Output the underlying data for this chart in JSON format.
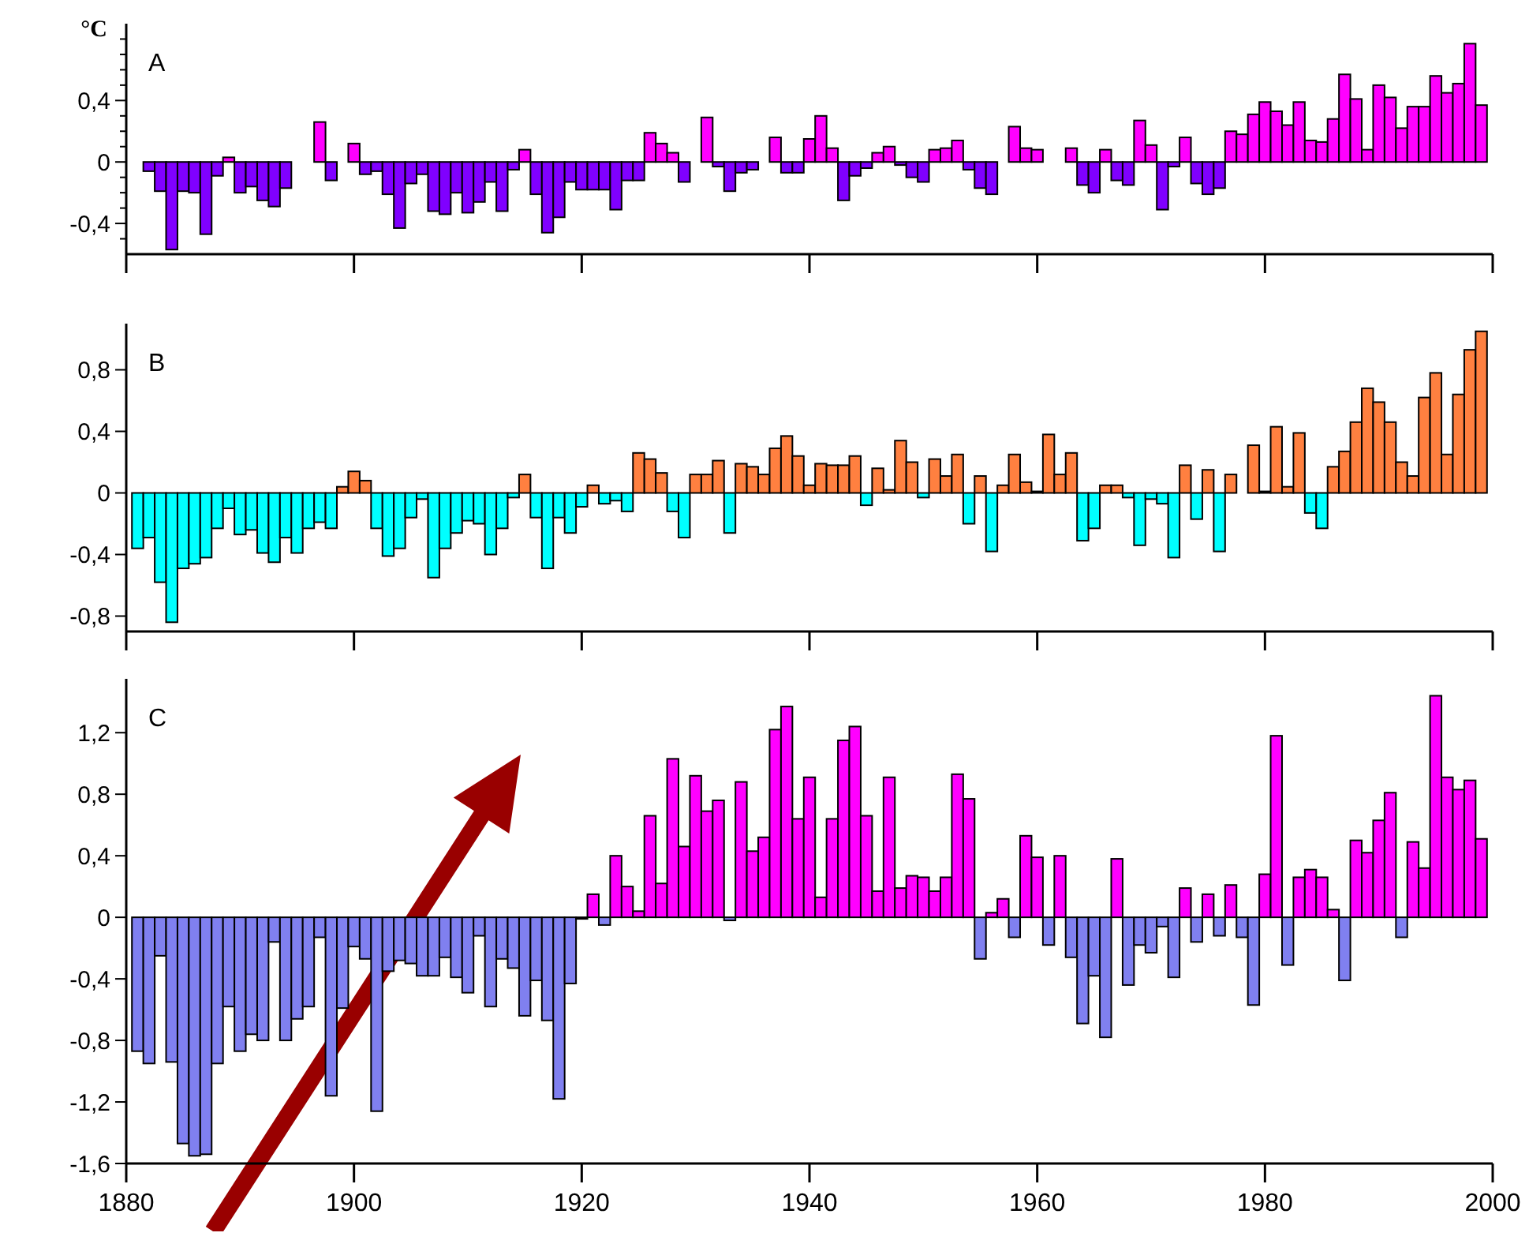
{
  "chart_data": [
    {
      "type": "bar",
      "title": "A",
      "ylabel": "°C",
      "xlim": [
        1880,
        2000
      ],
      "ylim": [
        -0.6,
        0.9
      ],
      "tick_labels": "y",
      "xticks": [
        {
          "value": 1880,
          "label": null
        },
        {
          "value": 1900,
          "label": null
        },
        {
          "value": 1920,
          "label": null
        },
        {
          "value": 1940,
          "label": null
        },
        {
          "value": 1960,
          "label": null
        },
        {
          "value": 1980,
          "label": null
        },
        {
          "value": 2000,
          "label": null
        }
      ],
      "yticks": [
        {
          "value": -0.5,
          "label": null
        },
        {
          "value": -0.4,
          "label": "-0,4"
        },
        {
          "value": -0.3,
          "label": null
        },
        {
          "value": -0.2,
          "label": null
        },
        {
          "value": -0.1,
          "label": null
        },
        {
          "value": 0,
          "label": "0"
        },
        {
          "value": 0.1,
          "label": null
        },
        {
          "value": 0.2,
          "label": null
        },
        {
          "value": 0.3,
          "label": null
        },
        {
          "value": 0.4,
          "label": "0,4"
        },
        {
          "value": 0.5,
          "label": null
        },
        {
          "value": 0.6,
          "label": null
        },
        {
          "value": 0.7,
          "label": null
        },
        {
          "value": 0.8,
          "label": null
        }
      ],
      "x": [
        1881,
        1882,
        1883,
        1884,
        1885,
        1886,
        1887,
        1888,
        1889,
        1890,
        1891,
        1892,
        1893,
        1894,
        1895,
        1896,
        1897,
        1898,
        1899,
        1900,
        1901,
        1902,
        1903,
        1904,
        1905,
        1906,
        1907,
        1908,
        1909,
        1910,
        1911,
        1912,
        1913,
        1914,
        1915,
        1916,
        1917,
        1918,
        1919,
        1920,
        1921,
        1922,
        1923,
        1924,
        1925,
        1926,
        1927,
        1928,
        1929,
        1930,
        1931,
        1932,
        1933,
        1934,
        1935,
        1936,
        1937,
        1938,
        1939,
        1940,
        1941,
        1942,
        1943,
        1944,
        1945,
        1946,
        1947,
        1948,
        1949,
        1950,
        1951,
        1952,
        1953,
        1954,
        1955,
        1956,
        1957,
        1958,
        1959,
        1960,
        1961,
        1962,
        1963,
        1964,
        1965,
        1966,
        1967,
        1968,
        1969,
        1970,
        1971,
        1972,
        1973,
        1974,
        1975,
        1976,
        1977,
        1978,
        1979,
        1980,
        1981,
        1982,
        1983,
        1984,
        1985,
        1986,
        1987,
        1988,
        1989,
        1990,
        1991,
        1992,
        1993,
        1994,
        1995,
        1996,
        1997,
        1998,
        1999
      ],
      "values": [
        0,
        -0.06,
        -0.19,
        -0.57,
        -0.19,
        -0.2,
        -0.47,
        -0.09,
        0.03,
        -0.2,
        -0.16,
        -0.25,
        -0.29,
        -0.17,
        0,
        0,
        0.26,
        -0.12,
        0,
        0.12,
        -0.08,
        -0.06,
        -0.21,
        -0.43,
        -0.14,
        -0.08,
        -0.32,
        -0.34,
        -0.2,
        -0.33,
        -0.26,
        -0.13,
        -0.32,
        -0.05,
        0.08,
        -0.21,
        -0.46,
        -0.36,
        -0.13,
        -0.18,
        -0.18,
        -0.18,
        -0.31,
        -0.12,
        -0.12,
        0.19,
        0.12,
        0.06,
        -0.13,
        0,
        0.29,
        -0.03,
        -0.19,
        -0.07,
        -0.05,
        0,
        0.16,
        -0.07,
        -0.07,
        0.15,
        0.3,
        0.09,
        -0.25,
        -0.09,
        -0.04,
        0.06,
        0.1,
        -0.02,
        -0.1,
        -0.13,
        0.08,
        0.09,
        0.14,
        -0.05,
        -0.17,
        -0.21,
        0,
        0.23,
        0.09,
        0.08,
        0,
        0,
        0.09,
        -0.15,
        -0.2,
        0.08,
        -0.12,
        -0.15,
        0.27,
        0.11,
        -0.31,
        -0.03,
        0.16,
        -0.14,
        -0.21,
        -0.17,
        0.2,
        0.18,
        0.31,
        0.39,
        0.33,
        0.24,
        0.39,
        0.14,
        0.13,
        0.28,
        0.57,
        0.41,
        0.08,
        0.5,
        0.42,
        0.22,
        0.36,
        0.36,
        0.56,
        0.45,
        0.51,
        0.77,
        0.37
      ],
      "colors": [
        "#8000ff",
        "#8000ff",
        "#8000ff",
        "#8000ff",
        "#8000ff",
        "#8000ff",
        "#8000ff",
        "#8000ff",
        "#ff00ff",
        "#8000ff",
        "#8000ff",
        "#8000ff",
        "#8000ff",
        "#8000ff",
        "#8000ff",
        "#8000ff",
        "#ff00ff",
        "#8000ff",
        "#8000ff",
        "#ff00ff",
        "#8000ff",
        "#8000ff",
        "#8000ff",
        "#8000ff",
        "#8000ff",
        "#8000ff",
        "#8000ff",
        "#8000ff",
        "#8000ff",
        "#8000ff",
        "#8000ff",
        "#8000ff",
        "#8000ff",
        "#8000ff",
        "#ff00ff",
        "#8000ff",
        "#8000ff",
        "#8000ff",
        "#8000ff",
        "#8000ff",
        "#8000ff",
        "#8000ff",
        "#8000ff",
        "#8000ff",
        "#8000ff",
        "#ff00ff",
        "#ff00ff",
        "#ff00ff",
        "#8000ff",
        "#8000ff",
        "#ff00ff",
        "#8000ff",
        "#8000ff",
        "#8000ff",
        "#8000ff",
        "#8000ff",
        "#ff00ff",
        "#8000ff",
        "#8000ff",
        "#ff00ff",
        "#ff00ff",
        "#ff00ff",
        "#8000ff",
        "#8000ff",
        "#8000ff",
        "#ff00ff",
        "#ff00ff",
        "#8000ff",
        "#8000ff",
        "#8000ff",
        "#ff00ff",
        "#ff00ff",
        "#ff00ff",
        "#8000ff",
        "#8000ff",
        "#8000ff",
        "#8000ff",
        "#ff00ff",
        "#ff00ff",
        "#ff00ff",
        "#8000ff",
        "#8000ff",
        "#ff00ff",
        "#8000ff",
        "#8000ff",
        "#ff00ff",
        "#8000ff",
        "#8000ff",
        "#ff00ff",
        "#ff00ff",
        "#8000ff",
        "#8000ff",
        "#ff00ff",
        "#8000ff",
        "#8000ff",
        "#8000ff",
        "#ff00ff",
        "#ff00ff",
        "#ff00ff",
        "#ff00ff",
        "#ff00ff",
        "#ff00ff",
        "#ff00ff",
        "#ff00ff",
        "#ff00ff",
        "#ff00ff",
        "#ff00ff",
        "#ff00ff",
        "#ff00ff",
        "#ff00ff",
        "#ff00ff",
        "#ff00ff",
        "#ff00ff",
        "#ff00ff",
        "#ff00ff",
        "#ff00ff",
        "#ff00ff",
        "#ff00ff",
        "#ff00ff"
      ]
    },
    {
      "type": "bar",
      "title": "B",
      "xlim": [
        1880,
        2000
      ],
      "ylim": [
        -0.9,
        1.1
      ],
      "tick_labels": "y",
      "xticks": [
        {
          "value": 1880,
          "label": null
        },
        {
          "value": 1900,
          "label": null
        },
        {
          "value": 1920,
          "label": null
        },
        {
          "value": 1940,
          "label": null
        },
        {
          "value": 1960,
          "label": null
        },
        {
          "value": 1980,
          "label": null
        },
        {
          "value": 2000,
          "label": null
        }
      ],
      "yticks": [
        {
          "value": -0.8,
          "label": "-0,8"
        },
        {
          "value": -0.4,
          "label": "-0,4"
        },
        {
          "value": 0,
          "label": "0"
        },
        {
          "value": 0.4,
          "label": "0,4"
        },
        {
          "value": 0.8,
          "label": "0,8"
        }
      ],
      "x": [
        1881,
        1882,
        1883,
        1884,
        1885,
        1886,
        1887,
        1888,
        1889,
        1890,
        1891,
        1892,
        1893,
        1894,
        1895,
        1896,
        1897,
        1898,
        1899,
        1900,
        1901,
        1902,
        1903,
        1904,
        1905,
        1906,
        1907,
        1908,
        1909,
        1910,
        1911,
        1912,
        1913,
        1914,
        1915,
        1916,
        1917,
        1918,
        1919,
        1920,
        1921,
        1922,
        1923,
        1924,
        1925,
        1926,
        1927,
        1928,
        1929,
        1930,
        1931,
        1932,
        1933,
        1934,
        1935,
        1936,
        1937,
        1938,
        1939,
        1940,
        1941,
        1942,
        1943,
        1944,
        1945,
        1946,
        1947,
        1948,
        1949,
        1950,
        1951,
        1952,
        1953,
        1954,
        1955,
        1956,
        1957,
        1958,
        1959,
        1960,
        1961,
        1962,
        1963,
        1964,
        1965,
        1966,
        1967,
        1968,
        1969,
        1970,
        1971,
        1972,
        1973,
        1974,
        1975,
        1976,
        1977,
        1978,
        1979,
        1980,
        1981,
        1982,
        1983,
        1984,
        1985,
        1986,
        1987,
        1988,
        1989,
        1990,
        1991,
        1992,
        1993,
        1994,
        1995,
        1996,
        1997,
        1998,
        1999
      ],
      "values": [
        -0.36,
        -0.29,
        -0.58,
        -0.84,
        -0.49,
        -0.46,
        -0.42,
        -0.23,
        -0.1,
        -0.27,
        -0.24,
        -0.39,
        -0.45,
        -0.29,
        -0.39,
        -0.23,
        -0.19,
        -0.23,
        0.04,
        0.14,
        0.08,
        -0.23,
        -0.41,
        -0.36,
        -0.16,
        -0.04,
        -0.55,
        -0.36,
        -0.26,
        -0.18,
        -0.2,
        -0.4,
        -0.23,
        -0.03,
        0.12,
        -0.16,
        -0.49,
        -0.16,
        -0.26,
        -0.09,
        0.05,
        -0.07,
        -0.05,
        -0.12,
        0.26,
        0.22,
        0.13,
        -0.12,
        -0.29,
        0.12,
        0.12,
        0.21,
        -0.26,
        0.19,
        0.17,
        0.12,
        0.29,
        0.37,
        0.24,
        0.05,
        0.19,
        0.18,
        0.18,
        0.24,
        -0.08,
        0.16,
        0.02,
        0.34,
        0.2,
        -0.03,
        0.22,
        0.11,
        0.25,
        -0.2,
        0.11,
        -0.38,
        0.05,
        0.25,
        0.07,
        0.01,
        0.38,
        0.12,
        0.26,
        -0.31,
        -0.23,
        0.05,
        0.05,
        -0.03,
        -0.34,
        -0.04,
        -0.07,
        -0.42,
        0.18,
        -0.17,
        0.15,
        -0.38,
        0.12,
        0,
        0.31,
        0.01,
        0.43,
        0.04,
        0.39,
        -0.13,
        -0.23,
        0.17,
        0.27,
        0.46,
        0.68,
        0.59,
        0.46,
        0.2,
        0.11,
        0.62,
        0.78,
        0.25,
        0.64,
        0.93,
        1.05
      ],
      "colors": [
        "#00ffff",
        "#00ffff",
        "#00ffff",
        "#00ffff",
        "#00ffff",
        "#00ffff",
        "#00ffff",
        "#00ffff",
        "#00ffff",
        "#00ffff",
        "#00ffff",
        "#00ffff",
        "#00ffff",
        "#00ffff",
        "#00ffff",
        "#00ffff",
        "#00ffff",
        "#00ffff",
        "#ff8040",
        "#ff8040",
        "#ff8040",
        "#00ffff",
        "#00ffff",
        "#00ffff",
        "#00ffff",
        "#00ffff",
        "#00ffff",
        "#00ffff",
        "#00ffff",
        "#00ffff",
        "#00ffff",
        "#00ffff",
        "#00ffff",
        "#00ffff",
        "#ff8040",
        "#00ffff",
        "#00ffff",
        "#00ffff",
        "#00ffff",
        "#00ffff",
        "#ff8040",
        "#00ffff",
        "#00ffff",
        "#00ffff",
        "#ff8040",
        "#ff8040",
        "#ff8040",
        "#00ffff",
        "#00ffff",
        "#ff8040",
        "#ff8040",
        "#ff8040",
        "#00ffff",
        "#ff8040",
        "#ff8040",
        "#ff8040",
        "#ff8040",
        "#ff8040",
        "#ff8040",
        "#ff8040",
        "#ff8040",
        "#ff8040",
        "#ff8040",
        "#ff8040",
        "#00ffff",
        "#ff8040",
        "#ff8040",
        "#ff8040",
        "#ff8040",
        "#00ffff",
        "#ff8040",
        "#ff8040",
        "#ff8040",
        "#00ffff",
        "#ff8040",
        "#00ffff",
        "#ff8040",
        "#ff8040",
        "#ff8040",
        "#ff8040",
        "#ff8040",
        "#ff8040",
        "#ff8040",
        "#00ffff",
        "#00ffff",
        "#ff8040",
        "#ff8040",
        "#00ffff",
        "#00ffff",
        "#00ffff",
        "#00ffff",
        "#00ffff",
        "#ff8040",
        "#00ffff",
        "#ff8040",
        "#00ffff",
        "#ff8040",
        "#ff8040",
        "#ff8040",
        "#ff8040",
        "#ff8040",
        "#ff8040",
        "#ff8040",
        "#00ffff",
        "#00ffff",
        "#ff8040",
        "#ff8040",
        "#ff8040",
        "#ff8040",
        "#ff8040",
        "#ff8040",
        "#ff8040",
        "#ff8040",
        "#ff8040",
        "#ff8040",
        "#ff8040",
        "#ff8040",
        "#ff8040",
        "#ff8040"
      ]
    },
    {
      "type": "bar",
      "title": "C",
      "xlim": [
        1880,
        2000
      ],
      "ylim": [
        -1.6,
        1.55
      ],
      "xticks": [
        1880,
        1900,
        1920,
        1940,
        1960,
        1980,
        2000
      ],
      "yticks": [
        {
          "value": -1.6,
          "label": "-1,6"
        },
        {
          "value": -1.2,
          "label": "-1,2"
        },
        {
          "value": -0.8,
          "label": "-0,8"
        },
        {
          "value": -0.4,
          "label": "-0,4"
        },
        {
          "value": 0,
          "label": "0"
        },
        {
          "value": 0.4,
          "label": "0,4"
        },
        {
          "value": 0.8,
          "label": "0,8"
        },
        {
          "value": 1.2,
          "label": "1,2"
        }
      ],
      "x": [
        1881,
        1882,
        1883,
        1884,
        1885,
        1886,
        1887,
        1888,
        1889,
        1890,
        1891,
        1892,
        1893,
        1894,
        1895,
        1896,
        1897,
        1898,
        1899,
        1900,
        1901,
        1902,
        1903,
        1904,
        1905,
        1906,
        1907,
        1908,
        1909,
        1910,
        1911,
        1912,
        1913,
        1914,
        1915,
        1916,
        1917,
        1918,
        1919,
        1920,
        1921,
        1922,
        1923,
        1924,
        1925,
        1926,
        1927,
        1928,
        1929,
        1930,
        1931,
        1932,
        1933,
        1934,
        1935,
        1936,
        1937,
        1938,
        1939,
        1940,
        1941,
        1942,
        1943,
        1944,
        1945,
        1946,
        1947,
        1948,
        1949,
        1950,
        1951,
        1952,
        1953,
        1954,
        1955,
        1956,
        1957,
        1958,
        1959,
        1960,
        1961,
        1962,
        1963,
        1964,
        1965,
        1966,
        1967,
        1968,
        1969,
        1970,
        1971,
        1972,
        1973,
        1974,
        1975,
        1976,
        1977,
        1978,
        1979,
        1980,
        1981,
        1982,
        1983,
        1984,
        1985,
        1986,
        1987,
        1988,
        1989,
        1990,
        1991,
        1992,
        1993,
        1994,
        1995,
        1996,
        1997,
        1998,
        1999
      ],
      "values": [
        -0.87,
        -0.95,
        -0.25,
        -0.94,
        -1.47,
        -1.55,
        -1.54,
        -0.95,
        -0.58,
        -0.87,
        -0.76,
        -0.8,
        -0.16,
        -0.8,
        -0.66,
        -0.58,
        -0.13,
        -1.16,
        -0.59,
        -0.19,
        -0.27,
        -1.26,
        -0.35,
        -0.28,
        -0.3,
        -0.38,
        -0.38,
        -0.26,
        -0.39,
        -0.49,
        -0.12,
        -0.58,
        -0.27,
        -0.33,
        -0.64,
        -0.41,
        -0.67,
        -1.18,
        -0.43,
        -0.01,
        0.15,
        -0.05,
        0.4,
        0.2,
        0.04,
        0.66,
        0.22,
        1.03,
        0.46,
        0.92,
        0.69,
        0.76,
        -0.02,
        0.88,
        0.43,
        0.52,
        1.22,
        1.37,
        0.64,
        0.91,
        0.13,
        0.64,
        1.15,
        1.24,
        0.66,
        0.17,
        0.91,
        0.19,
        0.27,
        0.26,
        0.17,
        0.26,
        0.93,
        0.77,
        -0.27,
        0.03,
        0.12,
        -0.13,
        0.53,
        0.39,
        -0.18,
        0.4,
        -0.26,
        -0.69,
        -0.38,
        -0.78,
        0.38,
        -0.44,
        -0.18,
        -0.23,
        -0.06,
        -0.39,
        0.19,
        -0.16,
        0.15,
        -0.12,
        0.21,
        -0.13,
        -0.57,
        0.28,
        1.18,
        -0.31,
        0.26,
        0.31,
        0.26,
        0.05,
        -0.41,
        0.5,
        0.42,
        0.63,
        0.81,
        -0.13,
        0.49,
        0.32,
        1.44,
        0.91,
        0.83,
        0.89,
        0.51
      ],
      "colors": [
        "#8080f0",
        "#8080f0",
        "#8080f0",
        "#8080f0",
        "#8080f0",
        "#8080f0",
        "#8080f0",
        "#8080f0",
        "#8080f0",
        "#8080f0",
        "#8080f0",
        "#8080f0",
        "#8080f0",
        "#8080f0",
        "#8080f0",
        "#8080f0",
        "#8080f0",
        "#8080f0",
        "#8080f0",
        "#8080f0",
        "#8080f0",
        "#8080f0",
        "#8080f0",
        "#8080f0",
        "#8080f0",
        "#8080f0",
        "#8080f0",
        "#8080f0",
        "#8080f0",
        "#8080f0",
        "#8080f0",
        "#8080f0",
        "#8080f0",
        "#8080f0",
        "#8080f0",
        "#8080f0",
        "#8080f0",
        "#8080f0",
        "#8080f0",
        "#8080f0",
        "#ff00ff",
        "#8080f0",
        "#ff00ff",
        "#ff00ff",
        "#ff00ff",
        "#ff00ff",
        "#ff00ff",
        "#ff00ff",
        "#ff00ff",
        "#ff00ff",
        "#ff00ff",
        "#ff00ff",
        "#8080f0",
        "#ff00ff",
        "#ff00ff",
        "#ff00ff",
        "#ff00ff",
        "#ff00ff",
        "#ff00ff",
        "#ff00ff",
        "#ff00ff",
        "#ff00ff",
        "#ff00ff",
        "#ff00ff",
        "#ff00ff",
        "#ff00ff",
        "#ff00ff",
        "#ff00ff",
        "#ff00ff",
        "#ff00ff",
        "#ff00ff",
        "#ff00ff",
        "#ff00ff",
        "#ff00ff",
        "#8080f0",
        "#ff00ff",
        "#ff00ff",
        "#8080f0",
        "#ff00ff",
        "#ff00ff",
        "#8080f0",
        "#ff00ff",
        "#8080f0",
        "#8080f0",
        "#8080f0",
        "#8080f0",
        "#ff00ff",
        "#8080f0",
        "#8080f0",
        "#8080f0",
        "#8080f0",
        "#8080f0",
        "#ff00ff",
        "#8080f0",
        "#ff00ff",
        "#8080f0",
        "#ff00ff",
        "#8080f0",
        "#8080f0",
        "#ff00ff",
        "#ff00ff",
        "#8080f0",
        "#ff00ff",
        "#ff00ff",
        "#ff00ff",
        "#ff00ff",
        "#8080f0",
        "#ff00ff",
        "#ff00ff",
        "#ff00ff",
        "#ff00ff",
        "#8080f0",
        "#ff00ff",
        "#ff00ff",
        "#ff00ff",
        "#ff00ff",
        "#ff00ff",
        "#ff00ff",
        "#ff00ff"
      ]
    }
  ]
}
